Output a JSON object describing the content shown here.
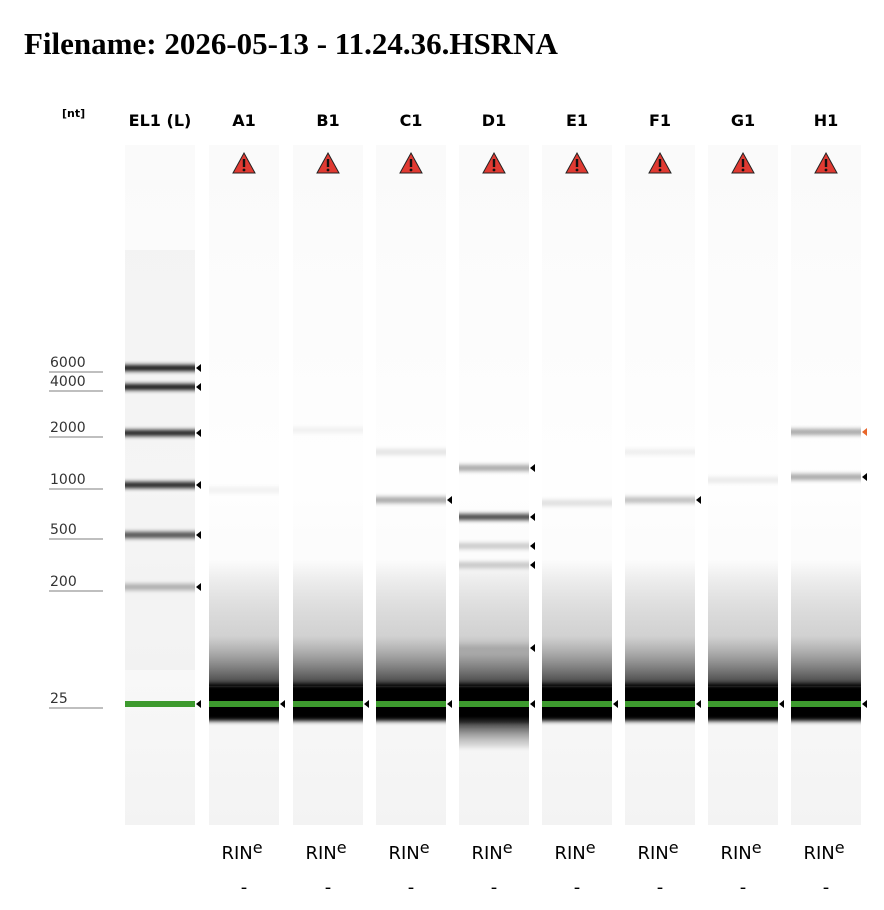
{
  "title": "Filename: 2026-05-13 - 11.24.36.HSRNA",
  "unit": "[nt]",
  "ladder": [
    "6000",
    "4000",
    "2000",
    "1000",
    "500",
    "200",
    "25"
  ],
  "rin_label": "RIN",
  "rin_sup": "e",
  "lanes": [
    {
      "name": "EL1 (L)"
    },
    {
      "name": "A1",
      "rin": "-"
    },
    {
      "name": "B1",
      "rin": "-"
    },
    {
      "name": "C1",
      "rin": "-"
    },
    {
      "name": "D1",
      "rin": "-"
    },
    {
      "name": "E1",
      "rin": "-"
    },
    {
      "name": "F1",
      "rin": "-"
    },
    {
      "name": "G1",
      "rin": "-"
    },
    {
      "name": "H1",
      "rin": "-"
    }
  ]
}
